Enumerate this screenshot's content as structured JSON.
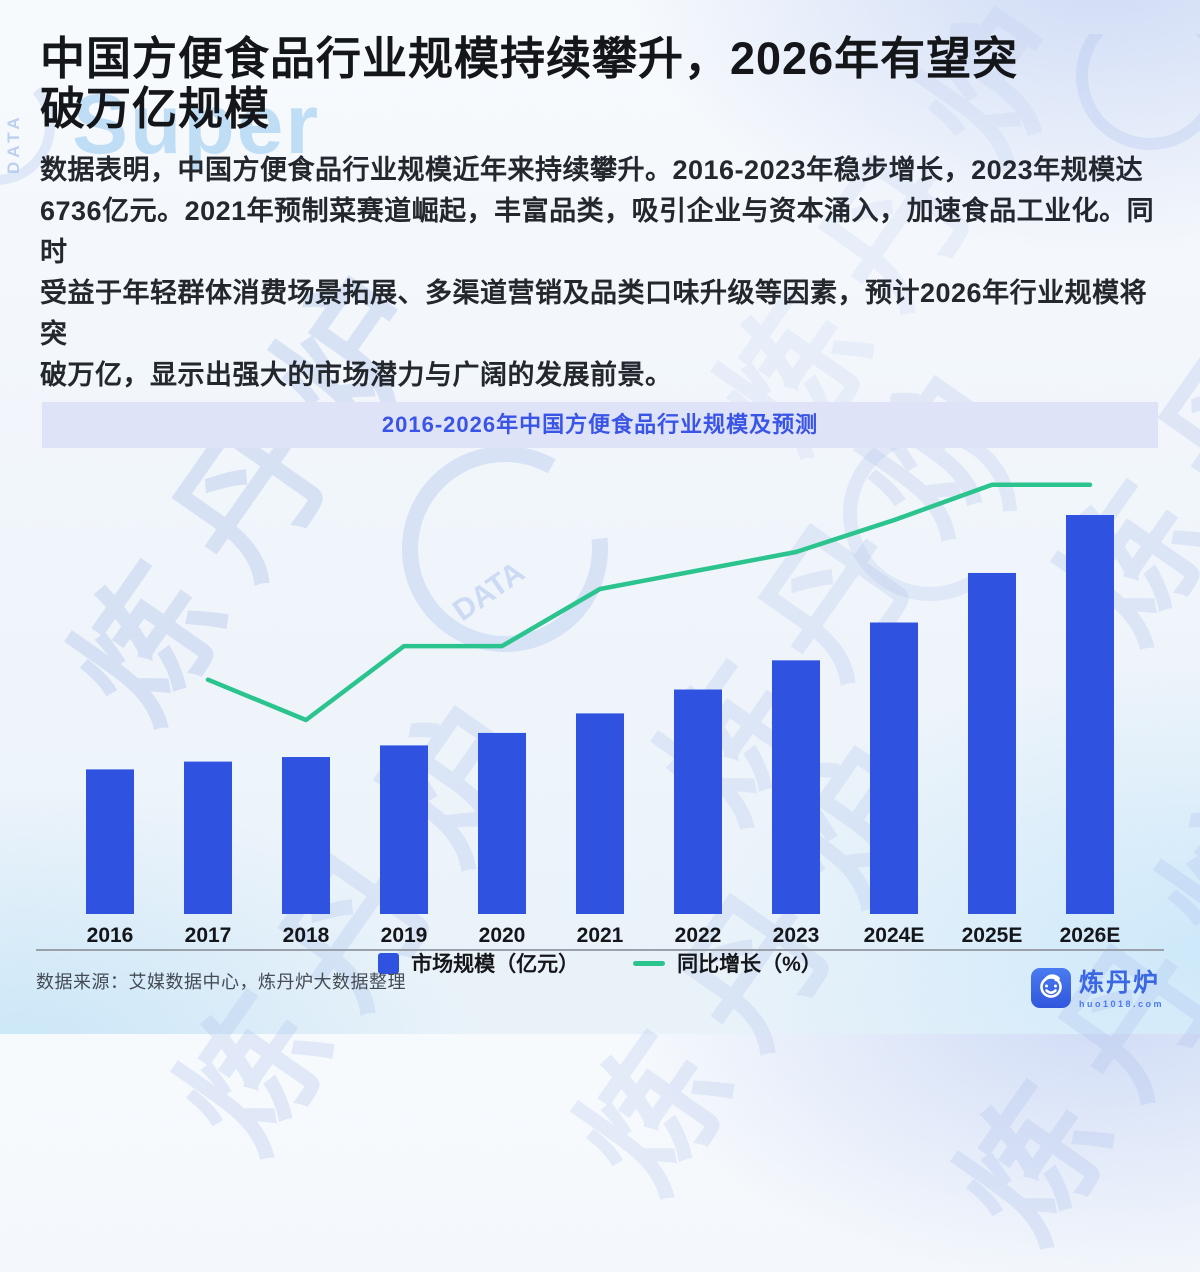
{
  "header": {
    "title": "中国方便食品行业规模持续攀升，2026年有望突\n破万亿规模",
    "description": "数据表明，中国方便食品行业规模近年来持续攀升。2016-2023年稳步增长，2023年规模达\n6736亿元。2021年预制菜赛道崛起，丰富品类，吸引企业与资本涌入，加速食品工业化。同时\n受益于年轻群体消费场景拓展、多渠道营销及品类口味升级等因素，预计2026年行业规模将突\n破万亿，显示出强大的市场潜力与广阔的发展前景。"
  },
  "chart": {
    "banner_title": "2016-2026年中国方便食品行业规模及预测",
    "legend": {
      "bar_label": "市场规模（亿元）",
      "line_label": "同比增长（%）"
    }
  },
  "chart_data": {
    "type": "bar+line",
    "title": "2016-2026年中国方便食品行业规模及预测",
    "categories": [
      "2016",
      "2017",
      "2018",
      "2019",
      "2020",
      "2021",
      "2022",
      "2023",
      "2024E",
      "2025E",
      "2026E"
    ],
    "series": [
      {
        "name": "市场规模（亿元）",
        "type": "bar",
        "unit": "亿元",
        "values": [
          3840,
          4047,
          4168,
          4477,
          4808,
          5327,
          5961,
          6736,
          7740,
          9056,
          10595
        ]
      },
      {
        "name": "同比增长（%）",
        "type": "line",
        "unit": "%",
        "values": [
          null,
          5.4,
          3.0,
          7.4,
          7.4,
          10.8,
          11.9,
          13.0,
          14.9,
          17.0,
          17.0
        ]
      }
    ],
    "xlabel": "",
    "ylabel": "",
    "grid": false,
    "value_axis_visible": false,
    "legend_position": "bottom"
  },
  "watermark": {
    "cn_text": "炼丹炉",
    "brand_text": "Super",
    "data_text": "DATA"
  },
  "footer": {
    "source": "数据来源：艾媒数据中心，炼丹炉大数据整理",
    "brand_name": "炼丹炉",
    "brand_url": "huo1018.com"
  },
  "colors": {
    "bar": "#2f53e0",
    "line": "#2bc48f",
    "banner_bg": "#dee3f8",
    "banner_text": "#3a55e6",
    "axis_text": "#14161a"
  }
}
